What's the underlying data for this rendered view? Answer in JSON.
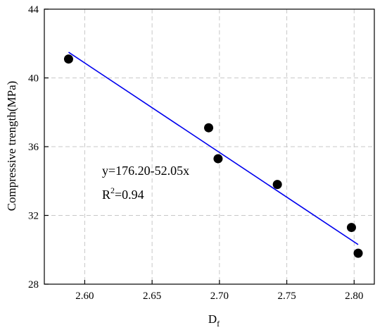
{
  "chart_data": {
    "type": "scatter",
    "title": "",
    "xlabel": "D",
    "xlabel_subscript": "f",
    "ylabel": "Compressive trength(MPa)",
    "xlim": [
      2.57,
      2.815
    ],
    "ylim": [
      28,
      44
    ],
    "x_ticks": [
      2.6,
      2.65,
      2.7,
      2.75,
      2.8
    ],
    "x_tick_labels": [
      "2.60",
      "2.65",
      "2.70",
      "2.75",
      "2.80"
    ],
    "y_ticks": [
      28,
      32,
      36,
      40,
      44
    ],
    "y_tick_labels": [
      "28",
      "32",
      "36",
      "40",
      "44"
    ],
    "grid": true,
    "points": {
      "color": "#000000",
      "x": [
        2.588,
        2.692,
        2.699,
        2.743,
        2.798,
        2.803
      ],
      "y": [
        41.1,
        37.1,
        35.3,
        33.8,
        31.3,
        29.8
      ]
    },
    "fit_line": {
      "color": "#0000ee",
      "intercept": 176.2,
      "slope": -52.05,
      "x_start": 2.588,
      "x_end": 2.803
    },
    "annotations": {
      "equation": "y=176.20-52.05x",
      "r2_prefix": "R",
      "r2_sup": "2",
      "r2_value": "=0.94"
    }
  }
}
